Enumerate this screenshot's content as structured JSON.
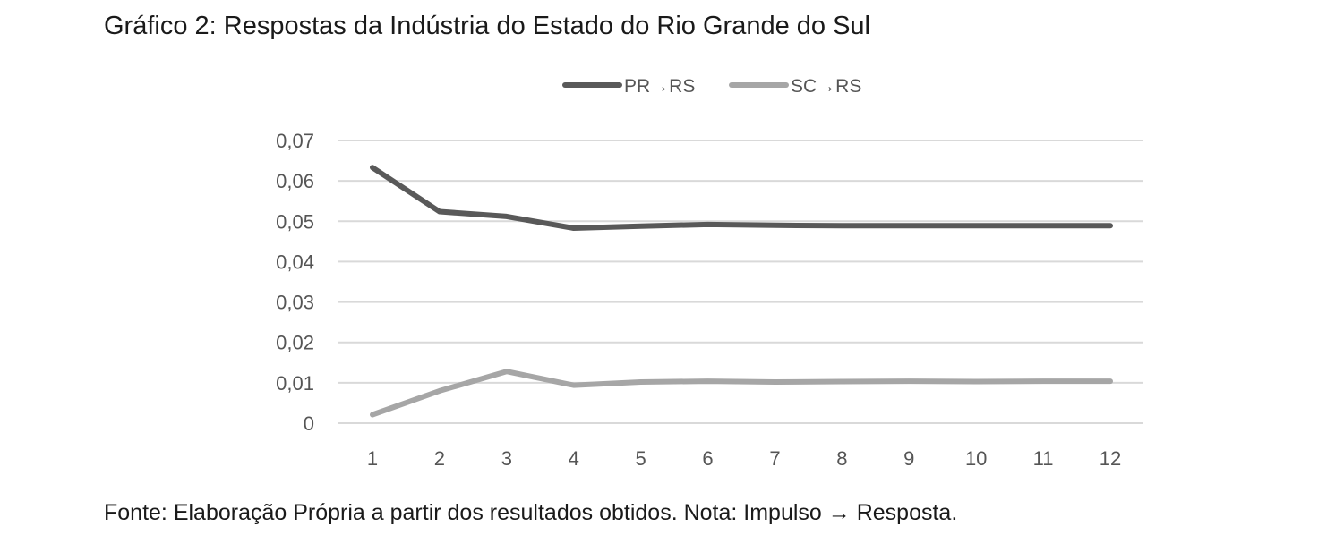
{
  "figure": {
    "title": "Gráfico 2: Respostas da Indústria do Estado do Rio Grande do Sul",
    "caption": "Fonte: Elaboração Própria a partir dos resultados obtidos. Nota: Impulso → Resposta."
  },
  "chart_data": {
    "type": "line",
    "x": [
      1,
      2,
      3,
      4,
      5,
      6,
      7,
      8,
      9,
      10,
      11,
      12
    ],
    "series": [
      {
        "name": "PR→RS",
        "color": "#595959",
        "values": [
          0.0633,
          0.0524,
          0.0512,
          0.0483,
          0.0488,
          0.0492,
          0.049,
          0.0489,
          0.0489,
          0.0489,
          0.0489,
          0.0489
        ]
      },
      {
        "name": "SC→RS",
        "color": "#a6a6a6",
        "values": [
          0.0021,
          0.008,
          0.0128,
          0.0094,
          0.0102,
          0.0104,
          0.0102,
          0.0103,
          0.0104,
          0.0103,
          0.0104,
          0.0104
        ]
      }
    ],
    "y_ticks": [
      "0",
      "0,01",
      "0,02",
      "0,03",
      "0,04",
      "0,05",
      "0,06",
      "0,07"
    ],
    "x_ticks": [
      "1",
      "2",
      "3",
      "4",
      "5",
      "6",
      "7",
      "8",
      "9",
      "10",
      "11",
      "12"
    ],
    "ylim": [
      0,
      0.07
    ],
    "grid": "horizontal",
    "legend_position": "top"
  }
}
